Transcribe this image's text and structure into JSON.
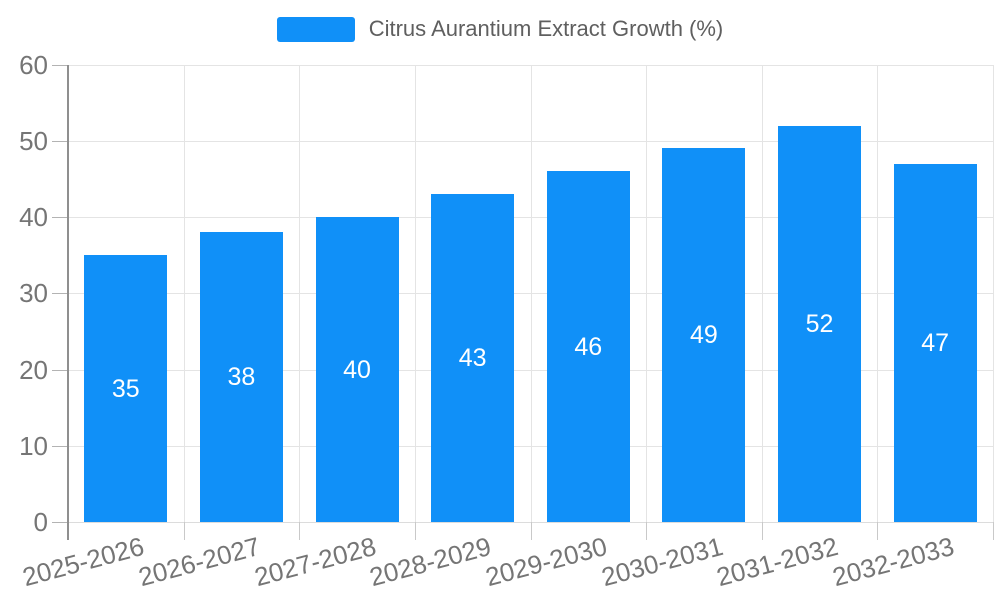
{
  "legend": {
    "label": "Citrus Aurantium Extract Growth (%)"
  },
  "chart_data": {
    "type": "bar",
    "title": "Citrus Aurantium Extract Growth (%)",
    "categories": [
      "2025-2026",
      "2026-2027",
      "2027-2028",
      "2028-2029",
      "2029-2030",
      "2030-2031",
      "2031-2032",
      "2032-2033"
    ],
    "series": [
      {
        "name": "Citrus Aurantium Extract Growth (%)",
        "values": [
          35,
          38,
          40,
          43,
          46,
          49,
          52,
          47
        ]
      }
    ],
    "xlabel": "",
    "ylabel": "",
    "ylim": [
      0,
      60
    ],
    "ytick_interval": 10,
    "yticks": [
      0,
      10,
      20,
      30,
      40,
      50,
      60
    ],
    "grid": true,
    "legend_position": "top-center",
    "bar_color": "#1090f8",
    "value_label_color": "#ffffff",
    "axis_label_color": "#757575",
    "legend_text_color": "#5f5f5f"
  }
}
